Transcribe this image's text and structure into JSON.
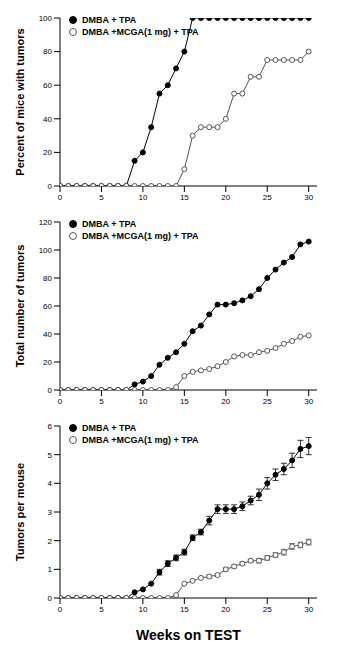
{
  "chart_data": [
    {
      "type": "line",
      "ylabel": "Percent of mice with tumors",
      "legend": "upper left",
      "grid": false,
      "x": [
        0,
        1,
        2,
        3,
        4,
        5,
        6,
        7,
        8,
        9,
        10,
        11,
        12,
        13,
        14,
        15,
        16,
        17,
        18,
        19,
        20,
        21,
        22,
        23,
        24,
        25,
        26,
        27,
        28,
        29,
        30
      ],
      "xlim": [
        0,
        31
      ],
      "xticks": [
        0,
        5,
        10,
        15,
        20,
        25,
        30
      ],
      "ylim": [
        0,
        100
      ],
      "yticks": [
        0,
        20,
        40,
        60,
        80,
        100
      ],
      "series": [
        {
          "name": "DMBA + TPA",
          "color": "#000000",
          "marker": "circle_filled",
          "values": [
            0,
            0,
            0,
            0,
            0,
            0,
            0,
            0,
            0,
            15,
            20,
            35,
            55,
            60,
            70,
            80,
            100,
            100,
            100,
            100,
            100,
            100,
            100,
            100,
            100,
            100,
            100,
            100,
            100,
            100,
            100
          ]
        },
        {
          "name": "DMBA +MCGA(1 mg) + TPA",
          "color": "#555555",
          "marker": "circle_open",
          "values": [
            0,
            0,
            0,
            0,
            0,
            0,
            0,
            0,
            0,
            0,
            0,
            0,
            0,
            0,
            0,
            10,
            30,
            35,
            35,
            35,
            40,
            55,
            55,
            65,
            65,
            75,
            75,
            75,
            75,
            75,
            80
          ]
        }
      ]
    },
    {
      "type": "line",
      "ylabel": "Total number of tumors",
      "legend": "upper left",
      "grid": false,
      "x": [
        0,
        1,
        2,
        3,
        4,
        5,
        6,
        7,
        8,
        9,
        10,
        11,
        12,
        13,
        14,
        15,
        16,
        17,
        18,
        19,
        20,
        21,
        22,
        23,
        24,
        25,
        26,
        27,
        28,
        29,
        30
      ],
      "xlim": [
        0,
        31
      ],
      "xticks": [
        0,
        5,
        10,
        15,
        20,
        25,
        30
      ],
      "ylim": [
        0,
        120
      ],
      "yticks": [
        0,
        20,
        40,
        60,
        80,
        100,
        120
      ],
      "series": [
        {
          "name": "DMBA + TPA",
          "color": "#000000",
          "marker": "circle_filled",
          "values": [
            0,
            0,
            0,
            0,
            0,
            0,
            0,
            0,
            0,
            4,
            6,
            10,
            18,
            23,
            27,
            33,
            42,
            46,
            54,
            61,
            61,
            62,
            64,
            67,
            72,
            80,
            86,
            91,
            95,
            104,
            106
          ]
        },
        {
          "name": "DMBA +MCGA(1 mg) + TPA",
          "color": "#555555",
          "marker": "circle_open",
          "values": [
            0,
            0,
            0,
            0,
            0,
            0,
            0,
            0,
            0,
            0,
            0,
            0,
            0,
            0,
            2,
            10,
            13,
            14,
            15,
            17,
            20,
            24,
            25,
            25,
            27,
            28,
            30,
            33,
            35,
            38,
            39
          ]
        }
      ]
    },
    {
      "type": "line",
      "ylabel": "Tumors per mouse",
      "xlabel": "Weeks on TEST",
      "legend": "upper left",
      "grid": false,
      "x": [
        0,
        1,
        2,
        3,
        4,
        5,
        6,
        7,
        8,
        9,
        10,
        11,
        12,
        13,
        14,
        15,
        16,
        17,
        18,
        19,
        20,
        21,
        22,
        23,
        24,
        25,
        26,
        27,
        28,
        29,
        30
      ],
      "xlim": [
        0,
        31
      ],
      "xticks": [
        0,
        5,
        10,
        15,
        20,
        25,
        30
      ],
      "ylim": [
        0,
        6
      ],
      "yticks": [
        0,
        1,
        2,
        3,
        4,
        5,
        6
      ],
      "series": [
        {
          "name": "DMBA + TPA",
          "color": "#000000",
          "marker": "circle_filled",
          "values": [
            0,
            0,
            0,
            0,
            0,
            0,
            0,
            0,
            0,
            0.2,
            0.3,
            0.5,
            0.9,
            1.2,
            1.4,
            1.6,
            2.1,
            2.3,
            2.7,
            3.1,
            3.1,
            3.1,
            3.2,
            3.4,
            3.6,
            4.0,
            4.3,
            4.5,
            4.8,
            5.2,
            5.3
          ],
          "errors": [
            0,
            0,
            0,
            0,
            0,
            0,
            0,
            0,
            0,
            0,
            0,
            0,
            0.1,
            0.1,
            0.1,
            0.1,
            0.1,
            0.1,
            0.15,
            0.15,
            0.15,
            0.15,
            0.15,
            0.15,
            0.2,
            0.2,
            0.2,
            0.2,
            0.25,
            0.3,
            0.3
          ]
        },
        {
          "name": "DMBA +MCGA(1 mg) + TPA",
          "color": "#555555",
          "marker": "circle_open",
          "values": [
            0,
            0,
            0,
            0,
            0,
            0,
            0,
            0,
            0,
            0,
            0,
            0,
            0,
            0,
            0.1,
            0.5,
            0.6,
            0.7,
            0.75,
            0.8,
            1.0,
            1.1,
            1.2,
            1.3,
            1.3,
            1.4,
            1.5,
            1.6,
            1.8,
            1.85,
            1.95
          ],
          "errors": [
            0,
            0,
            0,
            0,
            0,
            0,
            0,
            0,
            0,
            0,
            0,
            0,
            0,
            0,
            0,
            0,
            0,
            0,
            0.05,
            0.05,
            0.05,
            0.05,
            0.05,
            0.05,
            0.08,
            0.08,
            0.08,
            0.1,
            0.1,
            0.1,
            0.1
          ]
        }
      ]
    }
  ]
}
